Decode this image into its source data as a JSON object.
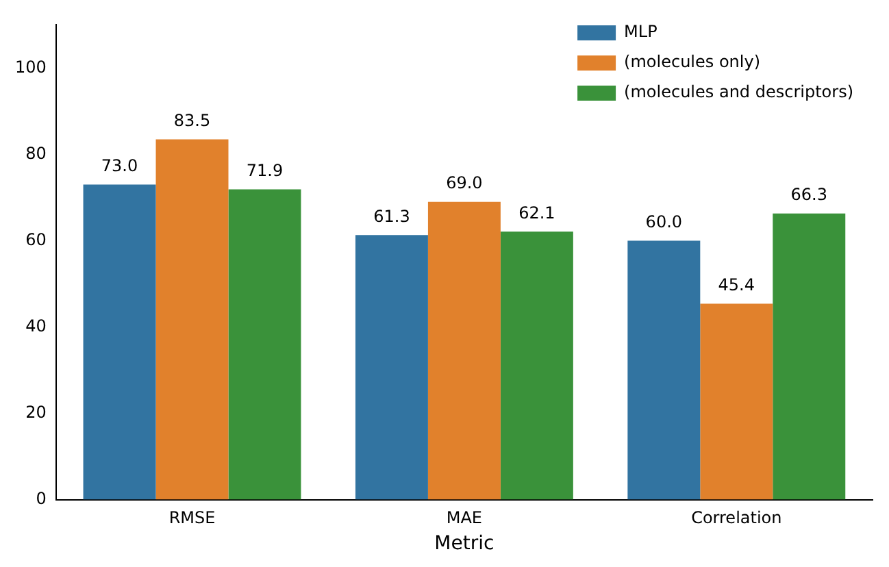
{
  "chart_data": {
    "type": "bar",
    "xlabel": "Metric",
    "categories": [
      "RMSE",
      "MAE",
      "Correlation"
    ],
    "series": [
      {
        "name": "MLP",
        "color": "#3274a1",
        "values": [
          73.0,
          61.3,
          60.0
        ],
        "value_labels": [
          "73.0",
          "61.3",
          "60.0"
        ]
      },
      {
        "name": "(molecules only)",
        "color": "#e1812c",
        "values": [
          83.5,
          69.0,
          45.4
        ],
        "value_labels": [
          "83.5",
          "69.0",
          "45.4"
        ]
      },
      {
        "name": "(molecules and descriptors)",
        "color": "#3a923a",
        "values": [
          71.9,
          62.1,
          66.3
        ],
        "value_labels": [
          "71.9",
          "62.1",
          "66.3"
        ]
      }
    ],
    "ylim": [
      0,
      110
    ],
    "yticks": [
      0,
      20,
      40,
      60,
      80,
      100
    ],
    "grid": false,
    "legend": "top right"
  }
}
